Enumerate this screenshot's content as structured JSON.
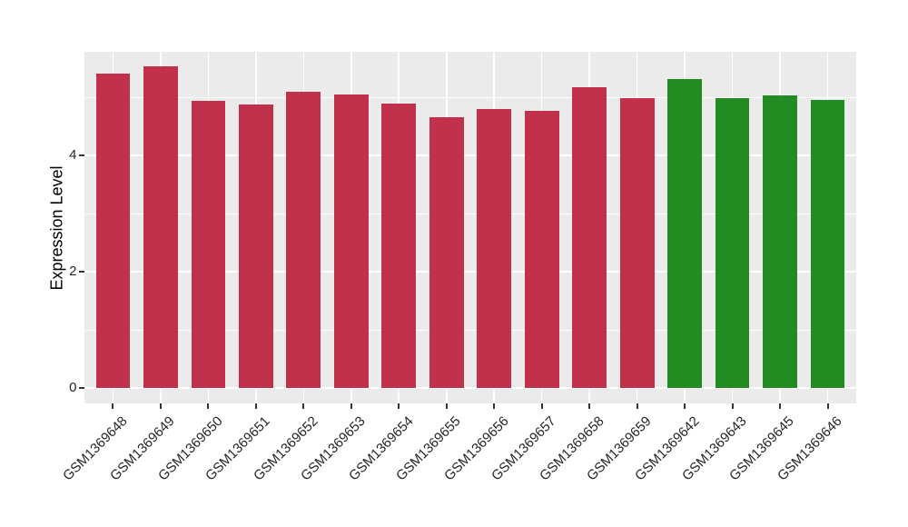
{
  "chart_data": {
    "type": "bar",
    "title": "",
    "xlabel": "",
    "ylabel": "Expression Level",
    "categories": [
      "GSM1369648",
      "GSM1369649",
      "GSM1369650",
      "GSM1369651",
      "GSM1369652",
      "GSM1369653",
      "GSM1369654",
      "GSM1369655",
      "GSM1369656",
      "GSM1369657",
      "GSM1369658",
      "GSM1369659",
      "GSM1369642",
      "GSM1369643",
      "GSM1369645",
      "GSM1369646"
    ],
    "values": [
      5.41,
      5.53,
      4.94,
      4.87,
      5.09,
      5.05,
      4.89,
      4.65,
      4.79,
      4.77,
      5.17,
      4.98,
      5.31,
      4.98,
      5.03,
      4.96
    ],
    "bar_colors": [
      "#C2314C",
      "#C2314C",
      "#C2314C",
      "#C2314C",
      "#C2314C",
      "#C2314C",
      "#C2314C",
      "#C2314C",
      "#C2314C",
      "#C2314C",
      "#C2314C",
      "#C2314C",
      "#228B22",
      "#228B22",
      "#228B22",
      "#228B22"
    ],
    "group_colors": {
      "group1": "#C2314C",
      "group2": "#228B22"
    },
    "groups": [
      "group1",
      "group1",
      "group1",
      "group1",
      "group1",
      "group1",
      "group1",
      "group1",
      "group1",
      "group1",
      "group1",
      "group1",
      "group2",
      "group2",
      "group2",
      "group2"
    ],
    "yticks": [
      0,
      2,
      4
    ],
    "yticks_minor": [
      1,
      3,
      5
    ],
    "ylim": [
      -0.27,
      5.78
    ],
    "x_tick_rotation": 45,
    "legend": "none",
    "grid": "on",
    "panel_background": "#EBEBEB",
    "gridline_color": "#FFFFFF"
  }
}
